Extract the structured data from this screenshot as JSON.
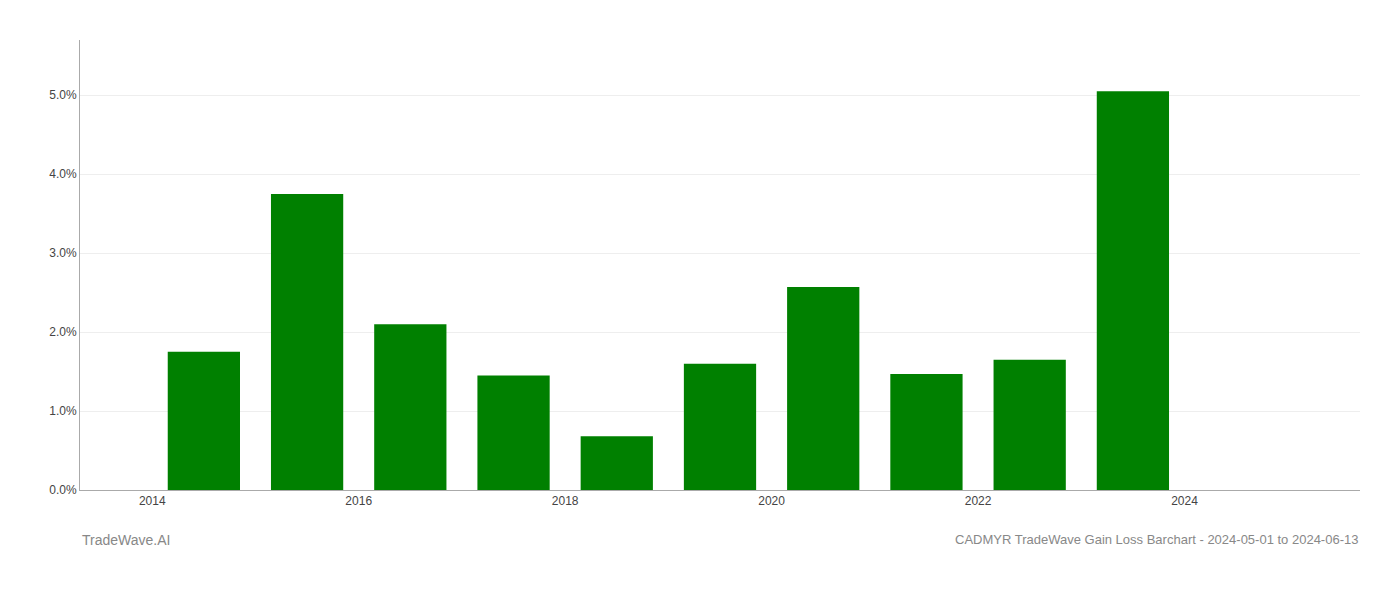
{
  "chart_data": {
    "type": "bar",
    "title": "CADMYR TradeWave Gain Loss Barchart - 2024-05-01 to 2024-06-13",
    "annotations": [
      "TradeWave.AI"
    ],
    "x": [
      2014,
      2015,
      2016,
      2017,
      2018,
      2019,
      2020,
      2021,
      2022,
      2023
    ],
    "values": [
      0.0175,
      0.0375,
      0.021,
      0.0145,
      0.0068,
      0.016,
      0.0257,
      0.0147,
      0.0165,
      0.0505
    ],
    "color": "#008000",
    "xlim": [
      2012.8,
      2025.2
    ],
    "xticks": [
      {
        "value": 2013.5,
        "label": "2014"
      },
      {
        "value": 2015.5,
        "label": "2016"
      },
      {
        "value": 2017.5,
        "label": "2018"
      },
      {
        "value": 2019.5,
        "label": "2020"
      },
      {
        "value": 2021.5,
        "label": "2022"
      },
      {
        "value": 2023.5,
        "label": "2024"
      }
    ],
    "ylim": [
      0,
      0.057
    ],
    "yticks": [
      {
        "value": 0.0,
        "label": "0.0%"
      },
      {
        "value": 0.01,
        "label": "1.0%"
      },
      {
        "value": 0.02,
        "label": "2.0%"
      },
      {
        "value": 0.03,
        "label": "3.0%"
      },
      {
        "value": 0.04,
        "label": "4.0%"
      },
      {
        "value": 0.05,
        "label": "5.0%"
      }
    ],
    "grid": true
  }
}
